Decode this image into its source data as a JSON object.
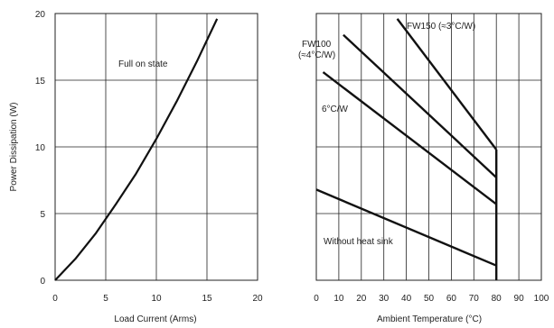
{
  "chart_data": [
    {
      "type": "line",
      "title": "",
      "xlabel": "Load Current (Arms)",
      "ylabel": "Power Dissipation (W)",
      "xlim": [
        0,
        20
      ],
      "ylim": [
        0,
        20
      ],
      "xticks": [
        "0",
        "5",
        "10",
        "15",
        "20"
      ],
      "yticks": [
        "0",
        "5",
        "10",
        "15",
        "20"
      ],
      "grid": true,
      "annotations": [
        "Full on state"
      ],
      "series": [
        {
          "name": "Full on state",
          "x": [
            0,
            2,
            4,
            6,
            8,
            10,
            12,
            14,
            16
          ],
          "y": [
            0,
            1.6,
            3.5,
            5.7,
            8.0,
            10.6,
            13.4,
            16.4,
            19.6
          ]
        }
      ]
    },
    {
      "type": "line",
      "title": "",
      "xlabel": "Ambient Temperature (°C)",
      "ylabel": "",
      "xlim": [
        0,
        100
      ],
      "ylim": [
        0,
        20
      ],
      "xticks": [
        "0",
        "10",
        "20",
        "30",
        "40",
        "50",
        "60",
        "70",
        "80",
        "90",
        "100"
      ],
      "grid": true,
      "annotations": [
        "FW150 (≈3°C/W)",
        "FW100",
        "(≈4°C/W)",
        "6°C/W",
        "Without heat sink"
      ],
      "series": [
        {
          "name": "FW150 (≈3°C/W)",
          "x": [
            36,
            80
          ],
          "y": [
            19.6,
            9.8
          ]
        },
        {
          "name": "FW100 (≈4°C/W)",
          "x": [
            12,
            80
          ],
          "y": [
            18.4,
            7.7
          ]
        },
        {
          "name": "6°C/W",
          "x": [
            3,
            80
          ],
          "y": [
            15.6,
            5.7
          ]
        },
        {
          "name": "Without heat sink",
          "x": [
            0,
            80
          ],
          "y": [
            6.8,
            1.1
          ]
        }
      ],
      "vertical_line": {
        "x": 80,
        "y": [
          0,
          9.8
        ]
      }
    }
  ]
}
